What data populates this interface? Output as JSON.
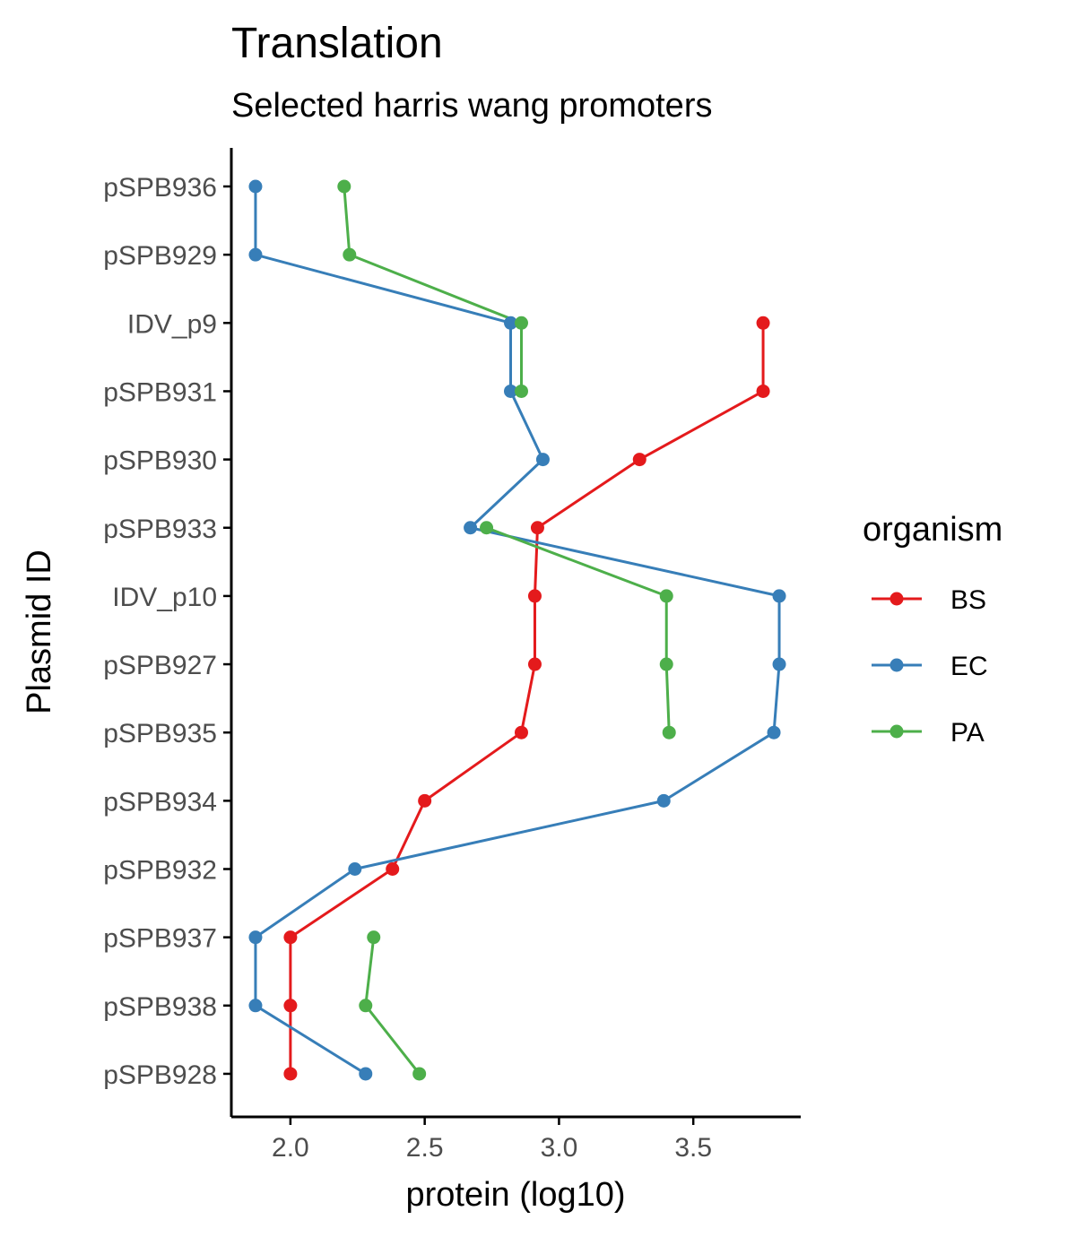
{
  "chart_data": {
    "type": "line",
    "title": "Translation",
    "subtitle": "Selected harris wang promoters",
    "xlabel": "protein (log10)",
    "ylabel": "Plasmid ID",
    "xlim": [
      1.78,
      3.9
    ],
    "xticks": [
      "2.0",
      "2.5",
      "3.0",
      "3.5"
    ],
    "categories": [
      "pSPB936",
      "pSPB929",
      "IDV_p9",
      "pSPB931",
      "pSPB930",
      "pSPB933",
      "IDV_p10",
      "pSPB927",
      "pSPB935",
      "pSPB934",
      "pSPB932",
      "pSPB937",
      "pSPB938",
      "pSPB928"
    ],
    "legend_title": "organism",
    "legend_position": "right",
    "grid": false,
    "series": [
      {
        "name": "BS",
        "color": "#e41a1c",
        "values": [
          null,
          null,
          3.76,
          3.76,
          3.3,
          2.92,
          2.91,
          2.91,
          2.86,
          2.5,
          2.38,
          2.0,
          2.0,
          2.0
        ]
      },
      {
        "name": "EC",
        "color": "#377eb8",
        "values": [
          1.87,
          1.87,
          2.82,
          2.82,
          2.94,
          2.67,
          3.82,
          3.82,
          3.8,
          3.39,
          2.24,
          1.87,
          1.87,
          2.28
        ]
      },
      {
        "name": "PA",
        "color": "#4daf4a",
        "values": [
          2.2,
          2.22,
          2.86,
          2.86,
          null,
          2.73,
          3.4,
          3.4,
          3.41,
          null,
          null,
          2.31,
          2.28,
          2.48
        ]
      }
    ]
  }
}
